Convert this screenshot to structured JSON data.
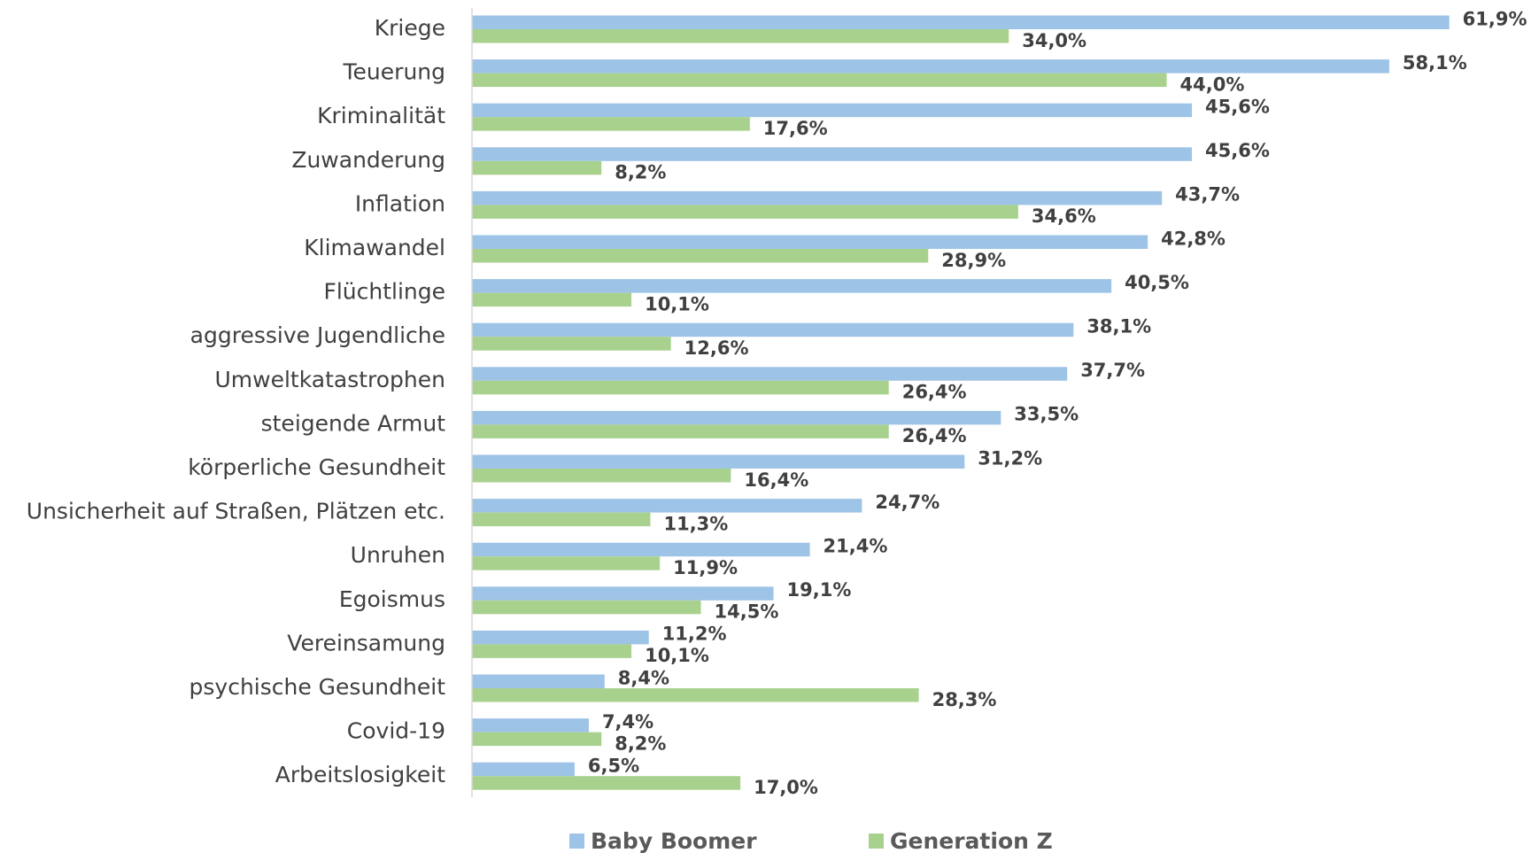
{
  "chart_data": {
    "type": "bar",
    "orientation": "horizontal",
    "categories": [
      "Kriege",
      "Teuerung",
      "Kriminalität",
      "Zuwanderung",
      "Inflation",
      "Klimawandel",
      "Flüchtlinge",
      "aggressive Jugendliche",
      "Umweltkatastrophen",
      "steigende Armut",
      "körperliche Gesundheit",
      "Unsicherheit auf Straßen, Plätzen etc.",
      "Unruhen",
      "Egoismus",
      "Vereinsamung",
      "psychische Gesundheit",
      "Covid-19",
      "Arbeitslosigkeit"
    ],
    "series": [
      {
        "name": "Baby Boomer",
        "color": "#9dc3e6",
        "values": [
          61.9,
          58.1,
          45.6,
          45.6,
          43.7,
          42.8,
          40.5,
          38.1,
          37.7,
          33.5,
          31.2,
          24.7,
          21.4,
          19.1,
          11.2,
          8.4,
          7.4,
          6.5
        ],
        "value_labels": [
          "61,9%",
          "58,1%",
          "45,6%",
          "45,6%",
          "43,7%",
          "42,8%",
          "40,5%",
          "38,1%",
          "37,7%",
          "33,5%",
          "31,2%",
          "24,7%",
          "21,4%",
          "19,1%",
          "11,2%",
          "8,4%",
          "7,4%",
          "6,5%"
        ]
      },
      {
        "name": "Generation Z",
        "color": "#a9d18e",
        "values": [
          34.0,
          44.0,
          17.6,
          8.2,
          34.6,
          28.9,
          10.1,
          12.6,
          26.4,
          26.4,
          16.4,
          11.3,
          11.9,
          14.5,
          10.1,
          28.3,
          8.2,
          17.0
        ],
        "value_labels": [
          "34,0%",
          "44,0%",
          "17,6%",
          "8,2%",
          "34,6%",
          "28,9%",
          "10,1%",
          "12,6%",
          "26,4%",
          "26,4%",
          "16,4%",
          "11,3%",
          "11,9%",
          "14,5%",
          "10,1%",
          "28,3%",
          "8,2%",
          "17,0%"
        ]
      }
    ],
    "legend": "bottom"
  }
}
